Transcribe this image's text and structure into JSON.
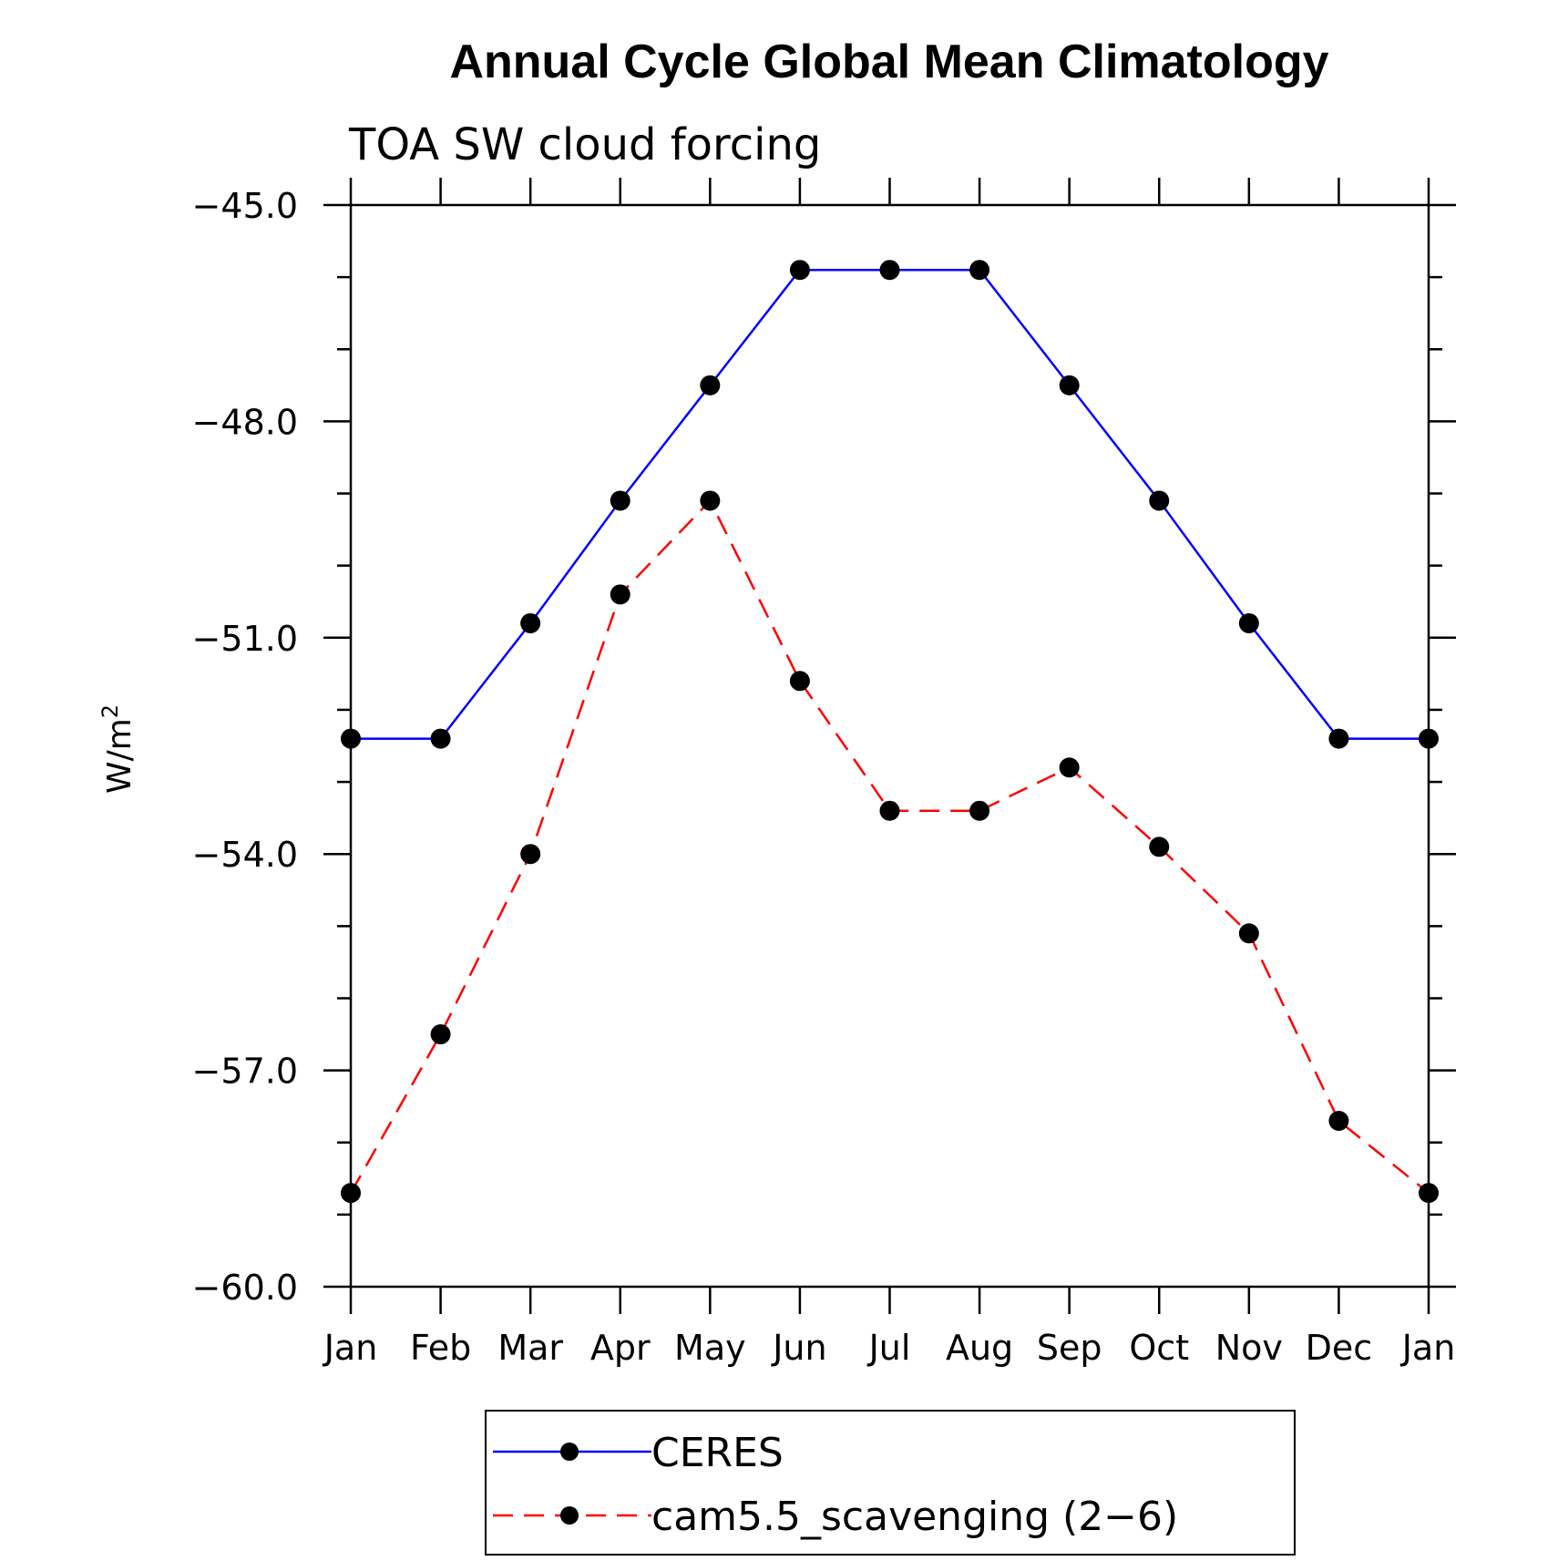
{
  "chart_data": {
    "type": "line",
    "title": "Annual Cycle Global Mean Climatology",
    "subtitle": "TOA SW cloud forcing",
    "ylabel": "W/m",
    "ylabel_superscript": "2",
    "xlabel": "",
    "categories": [
      "Jan",
      "Feb",
      "Mar",
      "Apr",
      "May",
      "Jun",
      "Jul",
      "Aug",
      "Sep",
      "Oct",
      "Nov",
      "Dec",
      "Jan"
    ],
    "ylim": [
      -60.0,
      -45.0
    ],
    "yticks": [
      -45.0,
      -48.0,
      -51.0,
      -54.0,
      -57.0,
      -60.0
    ],
    "ytick_labels": [
      "−45.0",
      "−48.0",
      "−51.0",
      "−54.0",
      "−57.0",
      "−60.0"
    ],
    "series": [
      {
        "name": "CERES",
        "color": "#0000ff",
        "dash": "solid",
        "values": [
          -52.4,
          -52.4,
          -50.8,
          -49.1,
          -47.5,
          -45.9,
          -45.9,
          -45.9,
          -47.5,
          -49.1,
          -50.8,
          -52.4,
          -52.4
        ]
      },
      {
        "name": "cam5.5_scavenging (2−6)",
        "color": "#ff0000",
        "dash": "dashed",
        "values": [
          -58.7,
          -56.5,
          -54.0,
          -50.4,
          -49.1,
          -51.6,
          -53.4,
          -53.4,
          -52.8,
          -53.9,
          -55.1,
          -57.7,
          -58.7
        ]
      }
    ],
    "marker_color": "#000000",
    "legend_position": "bottom-center",
    "grid": false
  }
}
